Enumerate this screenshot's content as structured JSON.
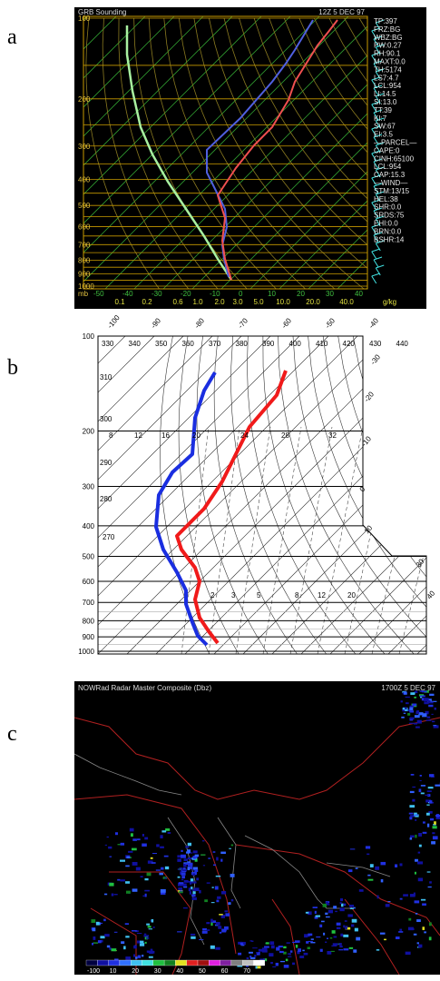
{
  "panels": [
    {
      "label": "a",
      "title": "GRB Sounding",
      "time": "12Z  5 DEC 97",
      "pressure_labels": [
        "100",
        "200",
        "300",
        "400",
        "500",
        "600",
        "700",
        "800",
        "900",
        "1000"
      ],
      "pressure_unit": "mb",
      "temperature_labels": [
        "-50",
        "-40",
        "-30",
        "-20",
        "-10",
        "0",
        "10",
        "20",
        "30",
        "40"
      ],
      "mixing_ratio_labels": [
        "0.1",
        "0.2",
        "0.6",
        "1.0",
        "2.0",
        "3.0",
        "5.0",
        "10.0",
        "20.0",
        "40.0"
      ],
      "mixing_ratio_unit": "g/kg",
      "indices": [
        "TP:397",
        "FRZ:BG",
        "WBZ:BG",
        "PW:0.27",
        "RH:90.1",
        "MAXT:0.0",
        "TH:5174",
        "LS7:4.7",
        "LCL:954",
        "LI:14.5",
        "SI:13.0",
        "TT:39",
        "KI:7",
        "SW:67",
        "EI:3.5",
        "—PARCEL—",
        "CAPE:0",
        "CINH:65100",
        "LCL:954",
        "CAP:15.3",
        "—WIND—",
        "STM:13/15",
        "HEL:38",
        "SHR:0.0",
        "SRDS:75",
        "EHI:0.0",
        "BRN:0.0",
        "BSHR:14"
      ]
    },
    {
      "label": "b",
      "top_temperature_labels": [
        "-100",
        "-90",
        "-80",
        "-70",
        "-60",
        "-50",
        "-40"
      ],
      "theta_labels": [
        "330",
        "340",
        "350",
        "360",
        "370",
        "380",
        "390",
        "400",
        "410",
        "420",
        "430",
        "440"
      ],
      "left_theta_labels": [
        "310",
        "300",
        "290",
        "280",
        "270"
      ],
      "pressure_labels": [
        "100",
        "200",
        "300",
        "400",
        "500",
        "600",
        "700",
        "800",
        "900",
        "1000"
      ],
      "right_temperature_labels": [
        "-30",
        "-20",
        "-10",
        "0",
        "10",
        "30",
        "40"
      ],
      "upper_mixing_labels": [
        "8",
        "12",
        "16",
        "20",
        "24",
        "28",
        "32"
      ],
      "lower_mixing_labels": [
        "2",
        "3",
        "5",
        "8",
        "12",
        "20"
      ]
    },
    {
      "label": "c",
      "title": "NOWRad Radar Master Composite (Dbz)",
      "time": "1700Z  5 DEC 97",
      "colorbar_labels": [
        "-100",
        "10",
        "20",
        "30",
        "40",
        "50",
        "60",
        "70"
      ]
    }
  ]
}
